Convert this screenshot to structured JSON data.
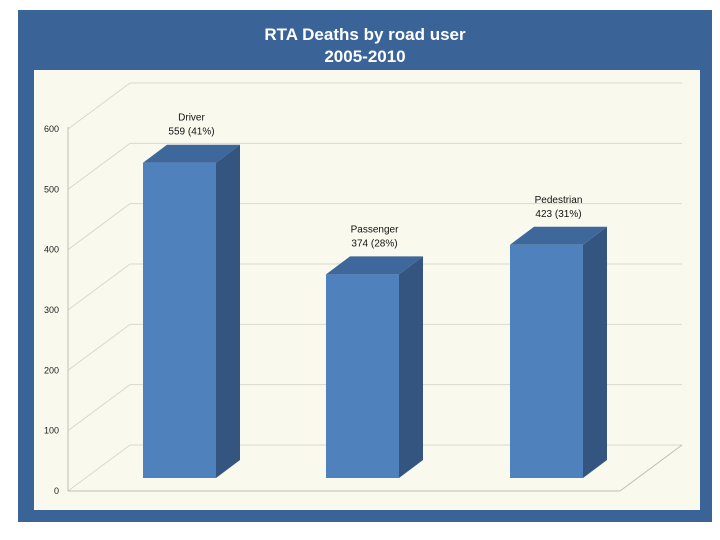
{
  "title": {
    "line1": "RTA Deaths by road user",
    "line2": "2005-2010"
  },
  "colors": {
    "background": "#3a6398",
    "plot_area": "#faf9ee",
    "bar_front": "#4f81bd",
    "bar_side": "#33557f",
    "bar_top": "#3e679b"
  },
  "chart_data": {
    "type": "bar",
    "categories": [
      "Driver",
      "Passenger",
      "Pedestrian"
    ],
    "values": [
      559,
      374,
      423
    ],
    "data_labels": [
      "559 (41%)",
      "374 (28%)",
      "423 (31%)"
    ],
    "ylim": [
      0,
      600
    ],
    "y_ticks": [
      "0",
      "100",
      "200",
      "300",
      "400",
      "500",
      "600"
    ],
    "grid": true,
    "three_d": true,
    "legend": "none"
  }
}
